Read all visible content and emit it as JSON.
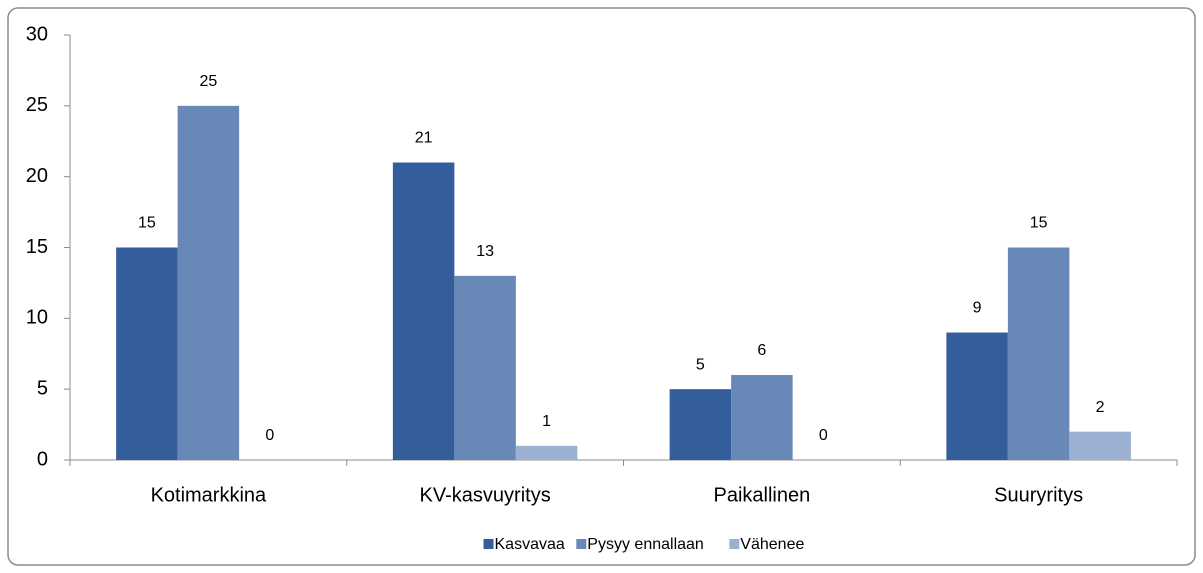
{
  "chart_data": {
    "type": "bar",
    "categories": [
      "Kotimarkkina",
      "KV-kasvuyritys",
      "Paikallinen",
      "Suuryritys"
    ],
    "series": [
      {
        "name": "Kasvavaa",
        "color": "#345d9b",
        "values": [
          15,
          21,
          5,
          9
        ]
      },
      {
        "name": "Pysyy ennallaan",
        "color": "#6889b8",
        "values": [
          25,
          13,
          6,
          15
        ]
      },
      {
        "name": "Vähenee",
        "color": "#9bb0d3",
        "values": [
          0,
          1,
          0,
          2
        ]
      }
    ],
    "ylim": [
      0,
      30
    ],
    "yticks": [
      0,
      5,
      10,
      15,
      20,
      25,
      30
    ],
    "grid": false,
    "legend": "bottom"
  }
}
